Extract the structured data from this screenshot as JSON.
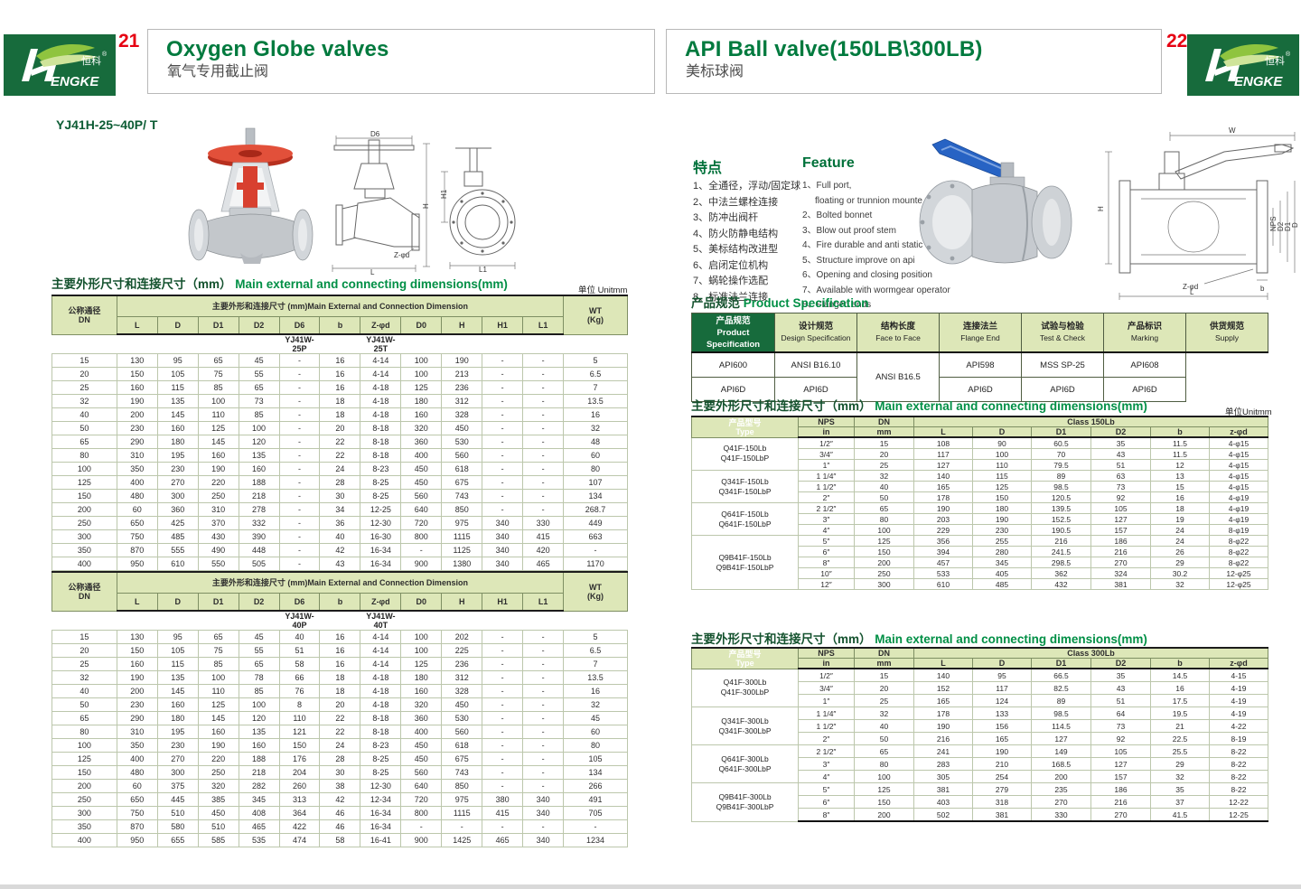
{
  "logo": {
    "brand_tail": "ENGKE",
    "badge": "恒科",
    "reg": "®"
  },
  "left": {
    "page_no": "21",
    "title": "Oxygen Globe valves",
    "subtitle": "氧气专用截止阀",
    "model": "YJ41H-25~40P/ T",
    "section_title_zh": "主要外形尺寸和连接尺寸（mm）",
    "section_title_en": "Main external and connecting dimensions(mm)",
    "unit": "单位 Unitmm",
    "header": {
      "dn_lines": [
        "公称通径",
        "DN"
      ],
      "span": "主要外形和连接尺寸 (mm)Main External and Connection Dimension",
      "wt_lines": [
        "WT",
        "(Kg)"
      ],
      "cols": [
        "L",
        "D",
        "D1",
        "D2",
        "D6",
        "b",
        "Z-φd",
        "D0",
        "H",
        "H1",
        "L1"
      ]
    },
    "part1": {
      "models": [
        "YJ41W-25P",
        "YJ41W-25T"
      ],
      "rows": [
        [
          "15",
          "130",
          "95",
          "65",
          "45",
          "-",
          "16",
          "4-14",
          "100",
          "190",
          "-",
          "-",
          "5"
        ],
        [
          "20",
          "150",
          "105",
          "75",
          "55",
          "-",
          "16",
          "4-14",
          "100",
          "213",
          "-",
          "-",
          "6.5"
        ],
        [
          "25",
          "160",
          "115",
          "85",
          "65",
          "-",
          "16",
          "4-18",
          "125",
          "236",
          "-",
          "-",
          "7"
        ],
        [
          "32",
          "190",
          "135",
          "100",
          "73",
          "-",
          "18",
          "4-18",
          "180",
          "312",
          "-",
          "-",
          "13.5"
        ],
        [
          "40",
          "200",
          "145",
          "110",
          "85",
          "-",
          "18",
          "4-18",
          "160",
          "328",
          "-",
          "-",
          "16"
        ],
        [
          "50",
          "230",
          "160",
          "125",
          "100",
          "-",
          "20",
          "8-18",
          "320",
          "450",
          "-",
          "-",
          "32"
        ],
        [
          "65",
          "290",
          "180",
          "145",
          "120",
          "-",
          "22",
          "8-18",
          "360",
          "530",
          "-",
          "-",
          "48"
        ],
        [
          "80",
          "310",
          "195",
          "160",
          "135",
          "-",
          "22",
          "8-18",
          "400",
          "560",
          "-",
          "-",
          "60"
        ],
        [
          "100",
          "350",
          "230",
          "190",
          "160",
          "-",
          "24",
          "8-23",
          "450",
          "618",
          "-",
          "-",
          "80"
        ],
        [
          "125",
          "400",
          "270",
          "220",
          "188",
          "-",
          "28",
          "8-25",
          "450",
          "675",
          "-",
          "-",
          "107"
        ],
        [
          "150",
          "480",
          "300",
          "250",
          "218",
          "-",
          "30",
          "8-25",
          "560",
          "743",
          "-",
          "-",
          "134"
        ],
        [
          "200",
          "60",
          "360",
          "310",
          "278",
          "-",
          "34",
          "12-25",
          "640",
          "850",
          "-",
          "-",
          "268.7"
        ],
        [
          "250",
          "650",
          "425",
          "370",
          "332",
          "-",
          "36",
          "12-30",
          "720",
          "975",
          "340",
          "330",
          "449"
        ],
        [
          "300",
          "750",
          "485",
          "430",
          "390",
          "-",
          "40",
          "16-30",
          "800",
          "1115",
          "340",
          "415",
          "663"
        ],
        [
          "350",
          "870",
          "555",
          "490",
          "448",
          "-",
          "42",
          "16-34",
          "-",
          "1125",
          "340",
          "420",
          "-"
        ],
        [
          "400",
          "950",
          "610",
          "550",
          "505",
          "-",
          "43",
          "16-34",
          "900",
          "1380",
          "340",
          "465",
          "1170"
        ]
      ]
    },
    "part2": {
      "models": [
        "YJ41W-40P",
        "YJ41W-40T"
      ],
      "rows": [
        [
          "15",
          "130",
          "95",
          "65",
          "45",
          "40",
          "16",
          "4-14",
          "100",
          "202",
          "-",
          "-",
          "5"
        ],
        [
          "20",
          "150",
          "105",
          "75",
          "55",
          "51",
          "16",
          "4-14",
          "100",
          "225",
          "-",
          "-",
          "6.5"
        ],
        [
          "25",
          "160",
          "115",
          "85",
          "65",
          "58",
          "16",
          "4-14",
          "125",
          "236",
          "-",
          "-",
          "7"
        ],
        [
          "32",
          "190",
          "135",
          "100",
          "78",
          "66",
          "18",
          "4-18",
          "180",
          "312",
          "-",
          "-",
          "13.5"
        ],
        [
          "40",
          "200",
          "145",
          "110",
          "85",
          "76",
          "18",
          "4-18",
          "160",
          "328",
          "-",
          "-",
          "16"
        ],
        [
          "50",
          "230",
          "160",
          "125",
          "100",
          "8",
          "20",
          "4-18",
          "320",
          "450",
          "-",
          "-",
          "32"
        ],
        [
          "65",
          "290",
          "180",
          "145",
          "120",
          "110",
          "22",
          "8-18",
          "360",
          "530",
          "-",
          "-",
          "45"
        ],
        [
          "80",
          "310",
          "195",
          "160",
          "135",
          "121",
          "22",
          "8-18",
          "400",
          "560",
          "-",
          "-",
          "60"
        ],
        [
          "100",
          "350",
          "230",
          "190",
          "160",
          "150",
          "24",
          "8-23",
          "450",
          "618",
          "-",
          "-",
          "80"
        ],
        [
          "125",
          "400",
          "270",
          "220",
          "188",
          "176",
          "28",
          "8-25",
          "450",
          "675",
          "-",
          "-",
          "105"
        ],
        [
          "150",
          "480",
          "300",
          "250",
          "218",
          "204",
          "30",
          "8-25",
          "560",
          "743",
          "-",
          "-",
          "134"
        ],
        [
          "200",
          "60",
          "375",
          "320",
          "282",
          "260",
          "38",
          "12-30",
          "640",
          "850",
          "-",
          "-",
          "266"
        ],
        [
          "250",
          "650",
          "445",
          "385",
          "345",
          "313",
          "42",
          "12-34",
          "720",
          "975",
          "380",
          "340",
          "491"
        ],
        [
          "300",
          "750",
          "510",
          "450",
          "408",
          "364",
          "46",
          "16-34",
          "800",
          "1115",
          "415",
          "340",
          "705"
        ],
        [
          "350",
          "870",
          "580",
          "510",
          "465",
          "422",
          "46",
          "16-34",
          "-",
          "-",
          "-",
          "-",
          "-"
        ],
        [
          "400",
          "950",
          "655",
          "585",
          "535",
          "474",
          "58",
          "16-41",
          "900",
          "1425",
          "465",
          "340",
          "1234"
        ]
      ]
    },
    "diagram": {
      "side": {
        "top": "D6",
        "right": "H",
        "bottom": "L",
        "bolt": "Z-φd"
      },
      "front": {
        "left": "H1",
        "bottom": "L1"
      }
    }
  },
  "right": {
    "page_no": "22",
    "title": "API Ball valve(150LB\\300LB)",
    "subtitle": "美标球阀",
    "features_zh_title": "特点",
    "features_zh": [
      "1、全通径，浮动/固定球",
      "2、中法兰螺栓连接",
      "3、防冲出阀杆",
      "4、防火防静电结构",
      "5、美标结构改进型",
      "6、启闭定位机构",
      "7、蜗轮操作选配",
      "8、标准法兰连接"
    ],
    "features_en_title": "Feature",
    "features_en": [
      {
        "text": "1、Full port,",
        "indent": false
      },
      {
        "text": "floating or trunnion mounte type",
        "indent": true
      },
      {
        "text": "2、Bolted bonnet",
        "indent": false
      },
      {
        "text": "3、Blow out proof stem",
        "indent": false
      },
      {
        "text": "4、Fire durable and anti static safety",
        "indent": false
      },
      {
        "text": "5、Structure improve on api",
        "indent": false
      },
      {
        "text": "6、Opening and closing position",
        "indent": false
      },
      {
        "text": "7、Available with wormgear operator",
        "indent": false
      },
      {
        "text": "8、Flanged ends",
        "indent": false
      }
    ],
    "spec": {
      "title_zh": "产品规范",
      "title_en": "Product Specification",
      "left_lines": [
        "产品规范",
        "Product",
        "Specification"
      ],
      "cols": [
        {
          "zh": "设计规范",
          "en": "Design Specification"
        },
        {
          "zh": "结构长度",
          "en": "Face to Face"
        },
        {
          "zh": "连接法兰",
          "en": "Flange End"
        },
        {
          "zh": "试验与检验",
          "en": "Test & Check"
        },
        {
          "zh": "产品标识",
          "en": "Marking"
        },
        {
          "zh": "供货规范",
          "en": "Supply"
        }
      ],
      "row1": [
        "API600",
        "ANSI B16.10",
        "ANSI B16.5",
        "API598",
        "MSS SP-25",
        "API608"
      ],
      "row2": [
        "API6D",
        "API6D",
        "API6D",
        "API6D",
        "API6D"
      ]
    },
    "t150": {
      "title_zh": "主要外形尺寸和连接尺寸（mm）",
      "title_en": "Main external and connecting dimensions(mm)",
      "unit": "单位Unitmm",
      "type_lines": [
        "产品型号",
        "Type"
      ],
      "nps": "NPS",
      "dn": "DN",
      "in": "in",
      "mm": "mm",
      "class_label": "Class 150Lb",
      "cols": [
        "L",
        "D",
        "D1",
        "D2",
        "b",
        "z-φd"
      ],
      "groups": [
        {
          "label": [
            "Q41F-150Lb",
            "Q41F-150LbP"
          ],
          "rows": [
            [
              "1/2″",
              "15",
              "108",
              "90",
              "60.5",
              "35",
              "11.5",
              "4-φ15"
            ],
            [
              "3/4″",
              "20",
              "117",
              "100",
              "70",
              "43",
              "11.5",
              "4-φ15"
            ],
            [
              "1″",
              "25",
              "127",
              "110",
              "79.5",
              "51",
              "12",
              "4-φ15"
            ]
          ]
        },
        {
          "label": [
            "Q341F-150Lb",
            "Q341F-150LbP"
          ],
          "rows": [
            [
              "1 1/4″",
              "32",
              "140",
              "115",
              "89",
              "63",
              "13",
              "4-φ15"
            ],
            [
              "1 1/2″",
              "40",
              "165",
              "125",
              "98.5",
              "73",
              "15",
              "4-φ15"
            ],
            [
              "2″",
              "50",
              "178",
              "150",
              "120.5",
              "92",
              "16",
              "4-φ19"
            ]
          ]
        },
        {
          "label": [
            "Q641F-150Lb",
            "Q641F-150LbP"
          ],
          "rows": [
            [
              "2 1/2″",
              "65",
              "190",
              "180",
              "139.5",
              "105",
              "18",
              "4-φ19"
            ],
            [
              "3″",
              "80",
              "203",
              "190",
              "152.5",
              "127",
              "19",
              "4-φ19"
            ],
            [
              "4″",
              "100",
              "229",
              "230",
              "190.5",
              "157",
              "24",
              "8-φ19"
            ]
          ]
        },
        {
          "label": [
            "Q9B41F-150Lb",
            "Q9B41F-150LbP"
          ],
          "rows": [
            [
              "5″",
              "125",
              "356",
              "255",
              "216",
              "186",
              "24",
              "8-φ22"
            ],
            [
              "6″",
              "150",
              "394",
              "280",
              "241.5",
              "216",
              "26",
              "8-φ22"
            ],
            [
              "8″",
              "200",
              "457",
              "345",
              "298.5",
              "270",
              "29",
              "8-φ22"
            ],
            [
              "10″",
              "250",
              "533",
              "405",
              "362",
              "324",
              "30.2",
              "12-φ25"
            ],
            [
              "12″",
              "300",
              "610",
              "485",
              "432",
              "381",
              "32",
              "12-φ25"
            ]
          ]
        }
      ]
    },
    "t300": {
      "title_zh": "主要外形尺寸和连接尺寸（mm）",
      "title_en": "Main external and connecting dimensions(mm)",
      "type_lines": [
        "产品型号",
        "Type"
      ],
      "nps": "NPS",
      "dn": "DN",
      "in": "in",
      "mm": "mm",
      "class_label": "Class 300Lb",
      "cols": [
        "L",
        "D",
        "D1",
        "D2",
        "b",
        "z-φd"
      ],
      "groups": [
        {
          "label": [
            "Q41F-300Lb",
            "Q41F-300LbP"
          ],
          "rows": [
            [
              "1/2″",
              "15",
              "140",
              "95",
              "66.5",
              "35",
              "14.5",
              "4-15"
            ],
            [
              "3/4″",
              "20",
              "152",
              "117",
              "82.5",
              "43",
              "16",
              "4-19"
            ],
            [
              "1″",
              "25",
              "165",
              "124",
              "89",
              "51",
              "17.5",
              "4-19"
            ]
          ]
        },
        {
          "label": [
            "Q341F-300Lb",
            "Q341F-300LbP"
          ],
          "rows": [
            [
              "1 1/4″",
              "32",
              "178",
              "133",
              "98.5",
              "64",
              "19.5",
              "4-19"
            ],
            [
              "1 1/2″",
              "40",
              "190",
              "156",
              "114.5",
              "73",
              "21",
              "4-22"
            ],
            [
              "2″",
              "50",
              "216",
              "165",
              "127",
              "92",
              "22.5",
              "8-19"
            ]
          ]
        },
        {
          "label": [
            "Q641F-300Lb",
            "Q641F-300LbP"
          ],
          "rows": [
            [
              "2 1/2″",
              "65",
              "241",
              "190",
              "149",
              "105",
              "25.5",
              "8-22"
            ],
            [
              "3″",
              "80",
              "283",
              "210",
              "168.5",
              "127",
              "29",
              "8-22"
            ],
            [
              "4″",
              "100",
              "305",
              "254",
              "200",
              "157",
              "32",
              "8-22"
            ]
          ]
        },
        {
          "label": [
            "Q9B41F-300Lb",
            "Q9B41F-300LbP"
          ],
          "rows": [
            [
              "5″",
              "125",
              "381",
              "279",
              "235",
              "186",
              "35",
              "8-22"
            ],
            [
              "6″",
              "150",
              "403",
              "318",
              "270",
              "216",
              "37",
              "12-22"
            ],
            [
              "8″",
              "200",
              "502",
              "381",
              "330",
              "270",
              "41.5",
              "12-25"
            ]
          ]
        }
      ]
    },
    "diagram": {
      "top": "W",
      "left": "H",
      "stack": [
        "NPS",
        "D2",
        "D1",
        "D"
      ],
      "bolt": "Z-φd",
      "b": "b",
      "bottom": "L"
    }
  }
}
